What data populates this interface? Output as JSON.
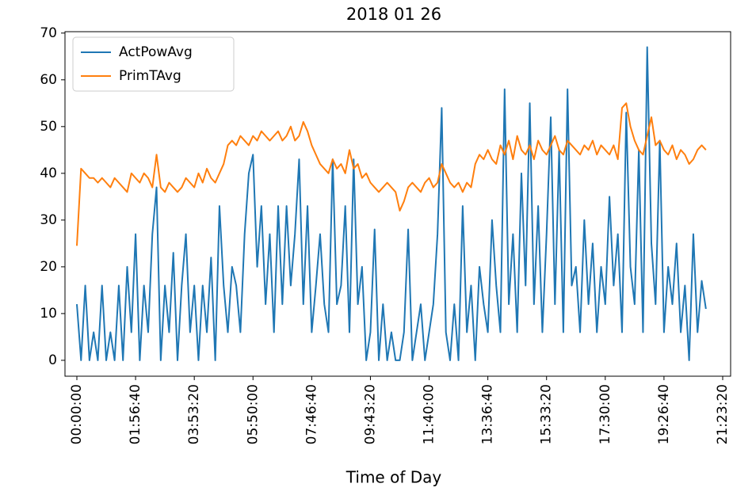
{
  "chart_data": {
    "type": "line",
    "title": "2018 01 26",
    "xlabel": "Time of Day",
    "x": [
      0,
      500,
      1000,
      1500,
      2000,
      2500,
      3000,
      3500,
      4000,
      4500,
      5000,
      5500,
      6000,
      6500,
      7000,
      7500,
      8000,
      8500,
      9000,
      9500,
      10000,
      10500,
      11000,
      11500,
      12000,
      12500,
      13000,
      13500,
      14000,
      14500,
      15000,
      15500,
      16000,
      16500,
      17000,
      17500,
      18000,
      18500,
      19000,
      19500,
      20000,
      20500,
      21000,
      21500,
      22000,
      22500,
      23000,
      23500,
      24000,
      24500,
      25000,
      25500,
      26000,
      26500,
      27000,
      27500,
      28000,
      28500,
      29000,
      29500,
      30000,
      30500,
      31000,
      31500,
      32000,
      32500,
      33000,
      33500,
      34000,
      34500,
      35000,
      35500,
      36000,
      36500,
      37000,
      37500,
      38000,
      38500,
      39000,
      39500,
      40000,
      40500,
      41000,
      41500,
      42000,
      42500,
      43000,
      43500,
      44000,
      44500,
      45000,
      45500,
      46000,
      46500,
      47000,
      47500,
      48000,
      48500,
      49000,
      49500,
      50000,
      50500,
      51000,
      51500,
      52000,
      52500,
      53000,
      53500,
      54000,
      54500,
      55000,
      55500,
      56000,
      56500,
      57000,
      57500,
      58000,
      58500,
      59000,
      59500,
      60000,
      60500,
      61000,
      61500,
      62000,
      62500,
      63000,
      63500,
      64000,
      64500,
      65000,
      65500,
      66000,
      66500,
      67000,
      67500,
      68000,
      68500,
      69000,
      69500,
      70000,
      70500,
      71000,
      71500,
      72000,
      72500,
      73000,
      73500,
      74000,
      74500,
      75000
    ],
    "series": [
      {
        "name": "ActPowAvg",
        "color": "#1f77b4",
        "values": [
          12,
          0,
          16,
          0,
          6,
          0,
          16,
          0,
          6,
          0,
          16,
          0,
          20,
          6,
          27,
          0,
          16,
          6,
          27,
          37,
          0,
          16,
          6,
          23,
          0,
          16,
          27,
          6,
          16,
          0,
          16,
          6,
          22,
          0,
          33,
          16,
          6,
          20,
          16,
          6,
          27,
          40,
          44,
          20,
          33,
          12,
          27,
          6,
          33,
          12,
          33,
          16,
          27,
          43,
          12,
          33,
          6,
          16,
          27,
          12,
          6,
          43,
          12,
          16,
          33,
          6,
          43,
          12,
          20,
          0,
          6,
          28,
          0,
          12,
          0,
          6,
          0,
          0,
          6,
          28,
          0,
          6,
          12,
          0,
          6,
          12,
          27,
          54,
          6,
          0,
          12,
          0,
          33,
          6,
          16,
          0,
          20,
          12,
          6,
          30,
          16,
          6,
          58,
          12,
          27,
          6,
          40,
          16,
          55,
          12,
          33,
          6,
          27,
          52,
          12,
          45,
          6,
          58,
          16,
          20,
          6,
          30,
          12,
          25,
          6,
          20,
          12,
          35,
          16,
          27,
          6,
          53,
          20,
          12,
          45,
          6,
          67,
          25,
          12,
          47,
          6,
          20,
          12,
          25,
          6,
          16,
          0,
          27,
          6,
          17,
          11
        ]
      },
      {
        "name": "PrimTAvg",
        "color": "#ff7f0e",
        "values": [
          24.5,
          41,
          40,
          39,
          39,
          38,
          39,
          38,
          37,
          39,
          38,
          37,
          36,
          40,
          39,
          38,
          40,
          39,
          37,
          44,
          37,
          36,
          38,
          37,
          36,
          37,
          39,
          38,
          37,
          40,
          38,
          41,
          39,
          38,
          40,
          42,
          46,
          47,
          46,
          48,
          47,
          46,
          48,
          47,
          49,
          48,
          47,
          48,
          49,
          47,
          48,
          50,
          47,
          48,
          51,
          49,
          46,
          44,
          42,
          41,
          40,
          43,
          41,
          42,
          40,
          45,
          41,
          42,
          39,
          40,
          38,
          37,
          36,
          37,
          38,
          37,
          36,
          32,
          34,
          37,
          38,
          37,
          36,
          38,
          39,
          37,
          38,
          42,
          40,
          38,
          37,
          38,
          36,
          38,
          37,
          42,
          44,
          43,
          45,
          43,
          42,
          46,
          44,
          47,
          43,
          48,
          45,
          44,
          46,
          43,
          47,
          45,
          44,
          46,
          48,
          45,
          44,
          47,
          46,
          45,
          44,
          46,
          45,
          47,
          44,
          46,
          45,
          44,
          46,
          43,
          54,
          55,
          50,
          47,
          45,
          44,
          48,
          52,
          46,
          47,
          45,
          44,
          46,
          43,
          45,
          44,
          42,
          43,
          45,
          46,
          45
        ]
      }
    ],
    "xlim": [
      -1417,
      77946
    ],
    "xticks": [
      {
        "value": 0,
        "label": "00:00:00"
      },
      {
        "value": 7000,
        "label": "01:56:40"
      },
      {
        "value": 14000,
        "label": "03:53:20"
      },
      {
        "value": 21000,
        "label": "05:50:00"
      },
      {
        "value": 28000,
        "label": "07:46:40"
      },
      {
        "value": 35000,
        "label": "09:43:20"
      },
      {
        "value": 42000,
        "label": "11:40:00"
      },
      {
        "value": 49000,
        "label": "13:36:40"
      },
      {
        "value": 56000,
        "label": "15:33:20"
      },
      {
        "value": 63000,
        "label": "17:30:00"
      },
      {
        "value": 70000,
        "label": "19:26:40"
      },
      {
        "value": 77000,
        "label": "21:23:20"
      }
    ],
    "ylim": [
      -3.4,
      70.3
    ],
    "yticks": [
      0,
      10,
      20,
      30,
      40,
      50,
      60,
      70
    ],
    "legend": "upper left"
  }
}
